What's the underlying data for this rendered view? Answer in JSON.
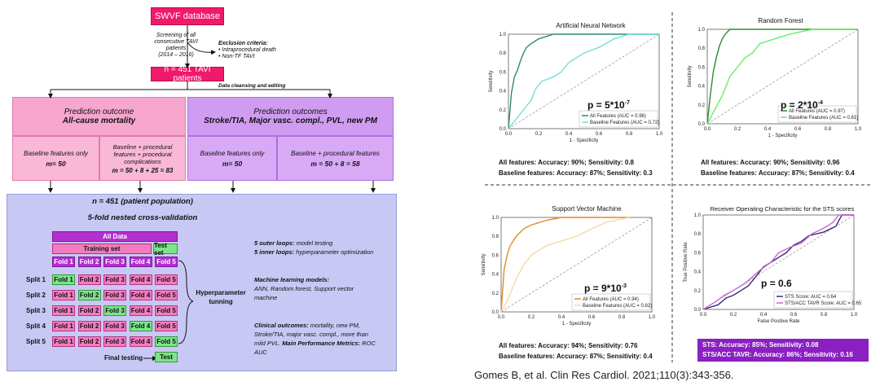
{
  "flow": {
    "database": "SWVF database",
    "screening": [
      "Screening of all",
      "consecutive TAVI",
      "patients",
      "(2014 – 2016)"
    ],
    "exclusion_title": "Exclusion criteria:",
    "exclusion_items": [
      "Intraprocedural death",
      "Non-TF TAVI"
    ],
    "patients": "n = 451 TAVI patients",
    "cleansing": "Data cleansing and editing",
    "left_outcome_label": "Prediction outcome",
    "left_outcome_value": "All-cause mortality",
    "right_outcome_label": "Prediction outcomes",
    "right_outcome_value": "Stroke/TIA, Major vasc. compl., PVL, new PM",
    "sub1_label": "Baseline features only",
    "sub1_value": "m= 50",
    "sub2_label": "Baseline + procedural features + procedural complications",
    "sub2_value": "m = 50 + 8 + 25 = 83",
    "sub3_label": "Baseline features only",
    "sub3_value": "m= 50",
    "sub4_label": "Baseline + procedural features",
    "sub4_value": "m = 50 + 8 = 58"
  },
  "cv": {
    "population": "n = 451 (patient population)",
    "method": "5-fold nested cross-validation",
    "all_data": "All Data",
    "training_set": "Training set",
    "test_set": "Test set",
    "fold_labels": [
      "Fold 1",
      "Fold 2",
      "Fold 3",
      "Fold 4",
      "Fold 5"
    ],
    "splits": [
      "Split 1",
      "Split 2",
      "Split 3",
      "Split 4",
      "Split 5"
    ],
    "hyper": [
      "Hyperparameter",
      "tunning"
    ],
    "final_testing": "Final testing",
    "test": "Test",
    "outer_em": "5 outer loops:",
    "outer_txt": " model testing",
    "inner_em": "5 inner loops:",
    "inner_txt": " hyperparameter optimization",
    "ml_title": "Machine learning models:",
    "ml_text": [
      "ANN, Random forest, Support vector",
      "machine"
    ],
    "clin_title": "Clinical outcomes:",
    "clin_text1": " mortality, new PM,",
    "clin_text2": "Stroke/TIA, major vasc. compl., more than",
    "clin_text3": "mild PVL. ",
    "metrics_title": "Main Performance Metrics:",
    "metrics_text": " ROC",
    "metrics_text2": "AUC"
  },
  "colors": {
    "pink_top": "#f0196b",
    "pink_light": "#f7a6cd",
    "purple_light": "#cf9cf2",
    "cv_bg": "#c8c8f4",
    "fold_pink": "#f27dbe",
    "fold_green": "#7ee38a",
    "fold_purple": "#b42fd1",
    "sts_box": "#8a1fc2"
  },
  "ann": {
    "title": "Artificial Neural Network",
    "pvalue": "p = 5*10",
    "pexp": "-7",
    "xlabel": "1 - Specificity",
    "ylabel": "Sensitivity",
    "legend": [
      "All Features (AUC = 0.96)",
      "Baseline Features (AUC = 0.72)"
    ],
    "acc1": "All features: Accuracy: 90%; Sensitivity: 0.8",
    "acc2": "Baseline features: Accuracy: 87%; Sensitivity: 0.3"
  },
  "rf": {
    "title": "Random Forest",
    "pvalue": "p = 2*10",
    "pexp": "-4",
    "xlabel": "1 - Specificity",
    "ylabel": "Sensitivity",
    "legend": [
      "All Features (AUC = 0.97)",
      "Baseline Features (AUC = 0.81)"
    ],
    "acc1": "All features: Accuracy: 90%; Sensitivity: 0.96",
    "acc2": "Baseline features: Accuracy: 87%; Sensitivity: 0.4"
  },
  "svm": {
    "title": "Support Vector Machine",
    "pvalue": "p = 9*10",
    "pexp": "-3",
    "xlabel": "1 - Specificity",
    "ylabel": "Sensitivity",
    "legend": [
      "All Features (AUC = 0.94)",
      "Baseline Features (AUC = 0.82)"
    ],
    "acc1": "All features: Accuracy: 94%; Sensitivity: 0.76",
    "acc2": "Baseline features: Accuracy: 87%; Sensitivity: 0.4"
  },
  "sts": {
    "title": "Receiver Operating Characteristic for the STS scores",
    "pvalue": "p = 0.6",
    "xlabel": "False Positive Rate",
    "ylabel": "True Positive Rate",
    "legend": [
      "STS Score: AUC = 0.64",
      "STS/ACC TAVR Score: AUC = 0.65"
    ],
    "acc1": "STS: Accuracy: 85%; Sensitivity: 0.08",
    "acc2": "STS/ACC TAVR: Accuracy: 86%; Sensitivity: 0.16"
  },
  "ticks": [
    "0.0",
    "0.2",
    "0.4",
    "0.6",
    "0.8",
    "1.0"
  ],
  "citation": "Gomes B, et al. Clin Res Cardiol. 2021;110(3):343-356."
}
